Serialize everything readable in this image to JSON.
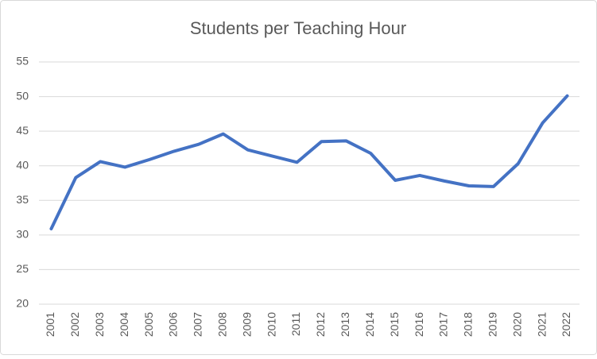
{
  "chart_data": {
    "type": "line",
    "title": "Students per Teaching Hour",
    "categories": [
      "2001",
      "2002",
      "2003",
      "2004",
      "2005",
      "2006",
      "2007",
      "2008",
      "2009",
      "2010",
      "2011",
      "2012",
      "2013",
      "2014",
      "2015",
      "2016",
      "2017",
      "2018",
      "2019",
      "2020",
      "2021",
      "2022"
    ],
    "values": [
      30.9,
      38.3,
      40.6,
      39.8,
      40.9,
      42.1,
      43.1,
      44.6,
      42.3,
      41.4,
      40.5,
      43.5,
      43.6,
      41.8,
      37.9,
      38.6,
      37.8,
      37.1,
      37.0,
      40.3,
      46.2,
      50.1
    ],
    "color": "#4472c4",
    "ylim": [
      20,
      55
    ],
    "yticks": [
      20,
      25,
      30,
      35,
      40,
      45,
      50,
      55
    ],
    "grid": true
  }
}
